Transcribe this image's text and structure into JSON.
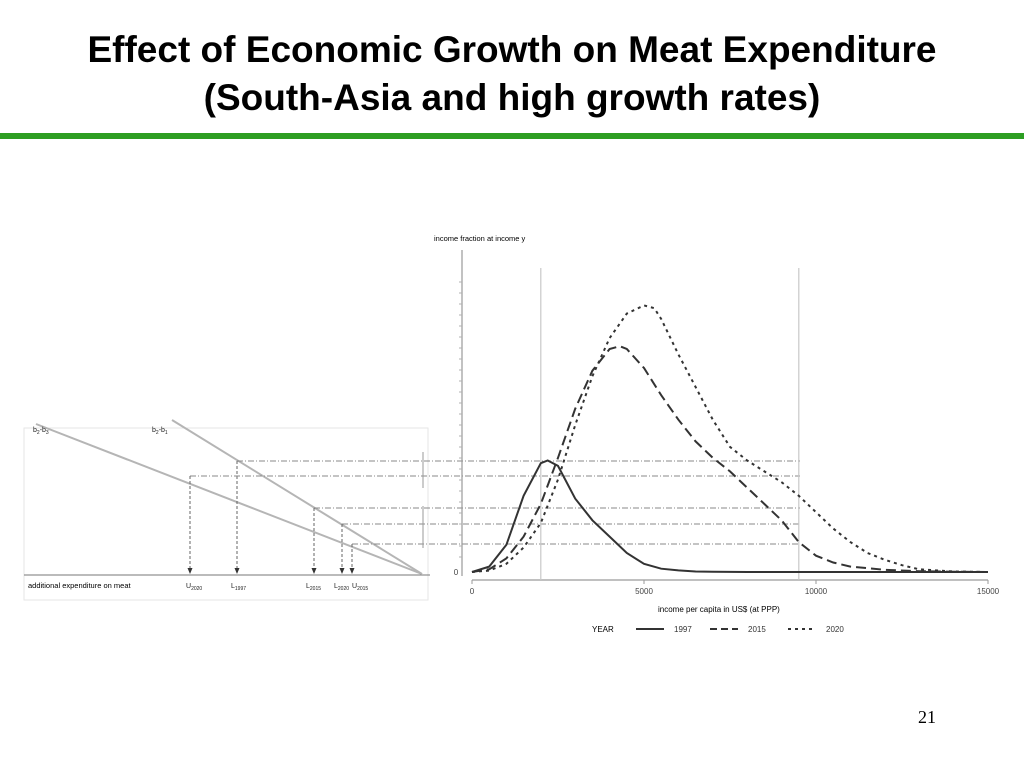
{
  "slide": {
    "title_line1": "Effect of Economic Growth on Meat Expenditure",
    "title_line2": "(South-Asia and high growth rates)",
    "page_number": "21",
    "accent_color": "#2d9e22"
  },
  "chart_data": [
    {
      "type": "line",
      "title": "",
      "ylabel": "income fraction at income y",
      "xlabel": "income per capita in US$ (at PPP)",
      "xlim": [
        0,
        15000
      ],
      "x_ticks": [
        0,
        5000,
        10000,
        15000
      ],
      "y_tick_labels": [
        "0"
      ],
      "legend_title": "YEAR",
      "legend_placement": "bottom",
      "vertical_reference_lines_x": [
        2000,
        9500
      ],
      "series": [
        {
          "name": "1997",
          "style": "solid",
          "x": [
            0,
            500,
            1000,
            1500,
            2000,
            2200,
            2500,
            3000,
            3500,
            4000,
            4500,
            5000,
            5500,
            6000,
            6500,
            7000,
            8000,
            10000,
            15000
          ],
          "y": [
            0,
            0.02,
            0.1,
            0.28,
            0.4,
            0.41,
            0.39,
            0.27,
            0.19,
            0.13,
            0.07,
            0.03,
            0.012,
            0.006,
            0.002,
            0.001,
            0,
            0,
            0
          ]
        },
        {
          "name": "2015",
          "style": "dashed",
          "x": [
            0,
            500,
            1000,
            1500,
            2000,
            2500,
            3000,
            3500,
            4000,
            4300,
            4500,
            5000,
            5500,
            6000,
            6500,
            7000,
            7500,
            8000,
            8500,
            9000,
            9500,
            10000,
            10500,
            11000,
            12000,
            13000,
            14000,
            15000
          ],
          "y": [
            0,
            0.01,
            0.05,
            0.13,
            0.25,
            0.42,
            0.6,
            0.74,
            0.82,
            0.83,
            0.82,
            0.75,
            0.65,
            0.56,
            0.48,
            0.42,
            0.37,
            0.31,
            0.25,
            0.19,
            0.11,
            0.06,
            0.035,
            0.02,
            0.008,
            0.003,
            0.001,
            0
          ]
        },
        {
          "name": "2020",
          "style": "dotted",
          "x": [
            0,
            500,
            1000,
            1500,
            2000,
            2500,
            3000,
            3500,
            4000,
            4500,
            5000,
            5300,
            5500,
            6000,
            6500,
            7000,
            7500,
            8000,
            8500,
            9000,
            9500,
            10000,
            10500,
            11000,
            11500,
            12000,
            12500,
            13000,
            14000,
            15000
          ],
          "y": [
            0,
            0.005,
            0.03,
            0.09,
            0.18,
            0.34,
            0.54,
            0.72,
            0.86,
            0.95,
            0.98,
            0.97,
            0.93,
            0.8,
            0.68,
            0.56,
            0.46,
            0.41,
            0.37,
            0.33,
            0.28,
            0.22,
            0.16,
            0.11,
            0.07,
            0.045,
            0.025,
            0.01,
            0.002,
            0
          ]
        }
      ]
    },
    {
      "type": "line",
      "title": "",
      "xlabel": "additional expenditure on meat",
      "note": "Engel-curve style lines mapping income levels to meat expenditure",
      "line_labels": [
        {
          "base": "b",
          "sub1": "2",
          "sep": "-b",
          "sub2": "3"
        },
        {
          "base": "b",
          "sub1": "2",
          "sep": "-b",
          "sub2": "1"
        }
      ],
      "point_labels": [
        {
          "base": "U",
          "sub": "2020"
        },
        {
          "base": "L",
          "sub": "1997"
        },
        {
          "base": "L",
          "sub": "2015"
        },
        {
          "base": "L",
          "sub": "2020"
        },
        {
          "base": "U",
          "sub": "2015"
        }
      ]
    }
  ]
}
